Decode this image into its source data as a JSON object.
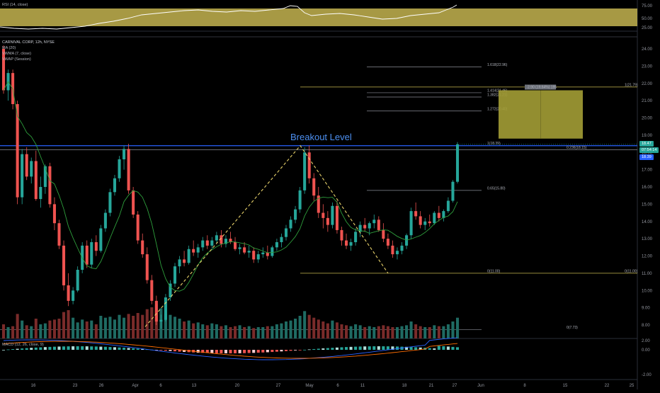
{
  "rsi": {
    "legend": "RSI (14, close)",
    "ticks": [
      "75.00",
      "50.00",
      "25.00"
    ]
  },
  "main": {
    "legend_line1": "CARNIVAL CORP, 12h, NYSE",
    "legend_line2": "MA (20)",
    "legend_line3": "VWMA (7, close)",
    "legend_line4": "VWAP (Session)",
    "price_ticks": [
      "24.00",
      "23.00",
      "22.00",
      "21.00",
      "20.00",
      "19.00",
      "18.00",
      "17.00",
      "16.00",
      "15.00",
      "14.00",
      "13.00",
      "12.00",
      "11.00",
      "10.00",
      "9.00",
      "8.00"
    ],
    "last_price": "18.47",
    "countdown": "07:54:14",
    "level_tag": "18.39",
    "annotation": "Breakout Level",
    "fib_levels": [
      {
        "label": "1.618(22.96)",
        "price": 22.96
      },
      {
        "label": "1.414(21.46)",
        "price": 21.46
      },
      {
        "label": "1.382(21.21)",
        "price": 21.21
      },
      {
        "label": "1.272(20.40)",
        "price": 20.4
      },
      {
        "label": "1(18.39)",
        "price": 18.39
      },
      {
        "label": "0.236(18.15)",
        "price": 18.15
      },
      {
        "label": "0.65(15.80)",
        "price": 15.8
      },
      {
        "label": "0(11.00)",
        "price": 11.0
      },
      {
        "label": "0(7.73)",
        "price": 7.73
      }
    ],
    "right_labels": [
      {
        "label": "1(21.79)",
        "price": 21.79
      },
      {
        "label": "0(11.00)",
        "price": 11.0
      }
    ],
    "box_tag": "2.90 (19.64%) 195"
  },
  "macd": {
    "legend": "MACD (12, 26, close, 9)",
    "ticks": [
      "2.00",
      "0.00",
      "-2.00"
    ]
  },
  "x_axis": [
    "16",
    "23",
    "26",
    "Apr",
    "6",
    "13",
    "20",
    "27",
    "May",
    "6",
    "11",
    "18",
    "21",
    "27",
    "Jun",
    "8",
    "15",
    "22",
    "25"
  ],
  "colors": {
    "up": "#26a69a",
    "down": "#ef5350",
    "rsi_band": "#b5a64a",
    "ma": "#2e9e3c",
    "breakout": "#2962ff",
    "dashed": "#e8d26a",
    "box": "#a39d35"
  },
  "chart_data": {
    "type": "candlestick",
    "symbol": "CARNIVAL CORP",
    "timeframe": "12h",
    "exchange": "NYSE",
    "ylim": [
      7.5,
      24.4
    ],
    "ohlc": [
      [
        24.0,
        24.2,
        21.4,
        21.6
      ],
      [
        21.6,
        22.8,
        21.0,
        22.6
      ],
      [
        22.6,
        22.8,
        20.5,
        20.8
      ],
      [
        20.8,
        21.0,
        15.0,
        15.4
      ],
      [
        15.4,
        18.2,
        15.0,
        17.9
      ],
      [
        17.9,
        18.3,
        16.4,
        16.6
      ],
      [
        16.6,
        17.7,
        16.2,
        17.5
      ],
      [
        17.5,
        18.1,
        15.2,
        15.3
      ],
      [
        15.3,
        16.6,
        14.8,
        16.0
      ],
      [
        16.0,
        17.3,
        15.6,
        17.2
      ],
      [
        17.2,
        17.4,
        14.8,
        15.0
      ],
      [
        15.0,
        15.4,
        13.5,
        13.9
      ],
      [
        13.9,
        14.1,
        12.4,
        12.6
      ],
      [
        12.6,
        12.9,
        10.0,
        10.3
      ],
      [
        10.3,
        11.0,
        9.1,
        9.4
      ],
      [
        9.4,
        10.2,
        9.2,
        10.0
      ],
      [
        10.0,
        11.4,
        9.9,
        11.2
      ],
      [
        11.2,
        12.8,
        11.0,
        12.6
      ],
      [
        12.6,
        12.9,
        11.3,
        11.5
      ],
      [
        11.5,
        13.0,
        11.3,
        12.8
      ],
      [
        12.8,
        13.2,
        12.0,
        12.3
      ],
      [
        12.3,
        13.8,
        12.2,
        13.6
      ],
      [
        13.6,
        14.7,
        13.4,
        14.5
      ],
      [
        14.5,
        15.9,
        14.3,
        15.7
      ],
      [
        15.7,
        16.7,
        15.5,
        16.5
      ],
      [
        16.5,
        17.8,
        16.3,
        17.6
      ],
      [
        17.6,
        18.4,
        17.0,
        18.2
      ],
      [
        18.2,
        18.5,
        15.6,
        15.8
      ],
      [
        15.8,
        16.0,
        14.2,
        14.4
      ],
      [
        14.4,
        14.6,
        12.7,
        12.9
      ],
      [
        12.9,
        13.3,
        11.9,
        12.1
      ],
      [
        12.1,
        12.5,
        10.4,
        10.6
      ],
      [
        10.6,
        10.9,
        9.2,
        9.4
      ],
      [
        9.4,
        9.7,
        8.0,
        8.2
      ],
      [
        8.2,
        8.6,
        7.8,
        8.3
      ],
      [
        8.3,
        9.8,
        8.2,
        9.6
      ],
      [
        9.6,
        10.6,
        9.4,
        10.4
      ],
      [
        10.4,
        11.6,
        10.2,
        11.4
      ],
      [
        11.4,
        12.0,
        11.0,
        11.8
      ],
      [
        11.8,
        12.3,
        11.4,
        11.6
      ],
      [
        11.6,
        12.6,
        11.5,
        12.4
      ],
      [
        12.4,
        12.9,
        12.0,
        12.2
      ],
      [
        12.2,
        12.7,
        11.9,
        12.5
      ],
      [
        12.5,
        13.1,
        12.3,
        12.9
      ],
      [
        12.9,
        13.2,
        12.4,
        12.6
      ],
      [
        12.6,
        13.1,
        12.4,
        12.9
      ],
      [
        12.9,
        13.4,
        12.7,
        13.2
      ],
      [
        13.2,
        13.5,
        12.5,
        12.7
      ],
      [
        12.7,
        13.2,
        12.5,
        13.0
      ],
      [
        13.0,
        13.4,
        12.7,
        12.8
      ],
      [
        12.8,
        13.1,
        12.3,
        12.4
      ],
      [
        12.4,
        12.7,
        12.1,
        12.5
      ],
      [
        12.5,
        12.8,
        12.1,
        12.2
      ],
      [
        12.2,
        12.6,
        11.9,
        12.3
      ],
      [
        12.3,
        12.5,
        11.6,
        11.8
      ],
      [
        11.8,
        12.3,
        11.6,
        12.1
      ],
      [
        12.1,
        12.5,
        11.9,
        12.2
      ],
      [
        12.2,
        12.6,
        11.8,
        12.0
      ],
      [
        12.0,
        12.6,
        11.9,
        12.5
      ],
      [
        12.5,
        13.0,
        12.3,
        12.8
      ],
      [
        12.8,
        13.3,
        12.5,
        13.1
      ],
      [
        13.1,
        13.8,
        12.9,
        13.6
      ],
      [
        13.6,
        14.3,
        13.4,
        14.1
      ],
      [
        14.1,
        14.9,
        13.9,
        14.7
      ],
      [
        14.7,
        16.0,
        14.5,
        15.8
      ],
      [
        15.8,
        18.3,
        15.6,
        18.0
      ],
      [
        18.0,
        18.4,
        16.2,
        16.5
      ],
      [
        16.5,
        16.8,
        15.2,
        15.5
      ],
      [
        15.5,
        16.0,
        14.2,
        14.5
      ],
      [
        14.5,
        15.0,
        13.6,
        14.2
      ],
      [
        14.2,
        14.6,
        13.4,
        13.8
      ],
      [
        13.8,
        15.1,
        13.6,
        14.9
      ],
      [
        14.9,
        15.2,
        13.3,
        13.5
      ],
      [
        13.5,
        13.7,
        12.6,
        12.9
      ],
      [
        12.9,
        13.3,
        12.4,
        12.6
      ],
      [
        12.6,
        13.0,
        12.3,
        12.8
      ],
      [
        12.8,
        13.6,
        12.6,
        13.4
      ],
      [
        13.4,
        14.0,
        13.1,
        13.8
      ],
      [
        13.8,
        14.2,
        13.4,
        13.6
      ],
      [
        13.6,
        14.0,
        13.2,
        13.9
      ],
      [
        13.9,
        14.4,
        13.6,
        14.1
      ],
      [
        14.1,
        14.3,
        13.4,
        13.5
      ],
      [
        13.5,
        13.9,
        12.8,
        13.0
      ],
      [
        13.0,
        13.3,
        12.4,
        12.6
      ],
      [
        12.6,
        12.9,
        11.9,
        12.1
      ],
      [
        12.1,
        12.5,
        11.8,
        12.3
      ],
      [
        12.3,
        12.8,
        12.1,
        12.6
      ],
      [
        12.6,
        13.3,
        12.4,
        13.2
      ],
      [
        13.2,
        14.8,
        13.0,
        14.6
      ],
      [
        14.6,
        15.1,
        14.1,
        14.3
      ],
      [
        14.3,
        14.6,
        13.6,
        13.8
      ],
      [
        13.8,
        14.2,
        13.5,
        14.0
      ],
      [
        14.0,
        14.4,
        13.7,
        13.9
      ],
      [
        13.9,
        14.6,
        13.8,
        14.5
      ],
      [
        14.5,
        14.9,
        14.0,
        14.2
      ],
      [
        14.2,
        14.7,
        14.0,
        14.6
      ],
      [
        14.6,
        15.4,
        14.5,
        15.2
      ],
      [
        15.2,
        16.4,
        15.1,
        16.3
      ],
      [
        16.3,
        18.6,
        16.2,
        18.47
      ]
    ],
    "volume": [
      1.5,
      1.2,
      1.3,
      2.6,
      1.9,
      1.4,
      1.3,
      2.1,
      1.5,
      1.6,
      1.9,
      2.0,
      2.1,
      2.8,
      3.0,
      2.2,
      1.7,
      2.0,
      1.8,
      1.9,
      1.5,
      2.4,
      2.2,
      2.3,
      2.0,
      2.5,
      2.2,
      2.6,
      2.4,
      2.7,
      2.5,
      3.1,
      3.3,
      3.6,
      3.2,
      2.6,
      2.5,
      2.3,
      2.1,
      1.8,
      1.9,
      1.6,
      1.7,
      1.5,
      1.4,
      1.6,
      1.5,
      1.3,
      1.4,
      1.2,
      1.3,
      1.4,
      1.2,
      1.3,
      1.1,
      1.2,
      1.2,
      1.3,
      1.3,
      1.5,
      1.6,
      1.8,
      1.9,
      2.1,
      2.4,
      2.9,
      2.5,
      2.2,
      2.0,
      1.8,
      1.6,
      1.9,
      1.7,
      1.5,
      1.4,
      1.3,
      1.5,
      1.4,
      1.2,
      1.3,
      1.2,
      1.3,
      1.4,
      1.3,
      1.2,
      1.2,
      1.3,
      1.4,
      1.8,
      1.5,
      1.3,
      1.2,
      1.2,
      1.4,
      1.3,
      1.3,
      1.5,
      1.8,
      2.2
    ],
    "horizontal_levels": [
      18.39,
      18.15
    ]
  }
}
